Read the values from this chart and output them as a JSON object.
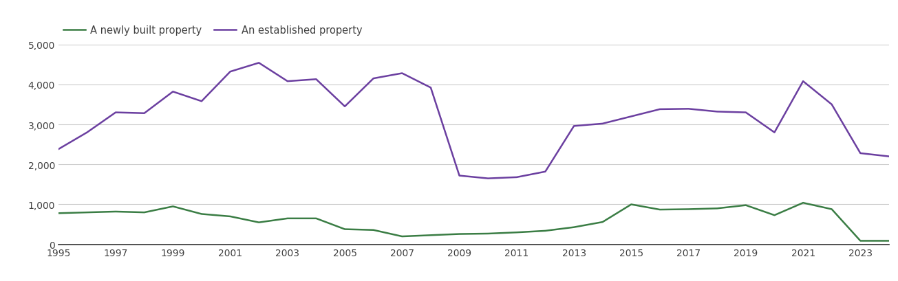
{
  "years": [
    1995,
    1996,
    1997,
    1998,
    1999,
    2000,
    2001,
    2002,
    2003,
    2004,
    2005,
    2006,
    2007,
    2008,
    2009,
    2010,
    2011,
    2012,
    2013,
    2014,
    2015,
    2016,
    2017,
    2018,
    2019,
    2020,
    2021,
    2022,
    2023,
    2024
  ],
  "newly_built": [
    780,
    800,
    820,
    800,
    950,
    760,
    700,
    550,
    650,
    650,
    380,
    360,
    200,
    230,
    260,
    270,
    300,
    340,
    430,
    560,
    1000,
    870,
    880,
    900,
    980,
    730,
    1040,
    880,
    90,
    90
  ],
  "established": [
    2380,
    2800,
    3300,
    3280,
    3820,
    3580,
    4320,
    4540,
    4080,
    4130,
    3450,
    4150,
    4280,
    3920,
    1720,
    1650,
    1680,
    1820,
    2960,
    3020,
    3200,
    3380,
    3390,
    3320,
    3300,
    2800,
    4080,
    3500,
    2280,
    2200
  ],
  "newly_built_color": "#3a7d44",
  "established_color": "#6b3fa0",
  "legend_label_new": "A newly built property",
  "legend_label_est": "An established property",
  "yticks": [
    0,
    1000,
    2000,
    3000,
    4000,
    5000
  ],
  "ytick_labels": [
    "0",
    "1,000",
    "2,000",
    "3,000",
    "4,000",
    "5,000"
  ],
  "xtick_years": [
    1995,
    1997,
    1999,
    2001,
    2003,
    2005,
    2007,
    2009,
    2011,
    2013,
    2015,
    2017,
    2019,
    2021,
    2023
  ],
  "xlim_left": 1995,
  "xlim_right": 2024,
  "ylim_bottom": 0,
  "ylim_top": 5000,
  "background_color": "#ffffff",
  "grid_color": "#cccccc",
  "line_width": 1.8,
  "font_color": "#404040",
  "font_size_legend": 10.5,
  "font_size_ticks": 10,
  "bottom_spine_color": "#333333"
}
